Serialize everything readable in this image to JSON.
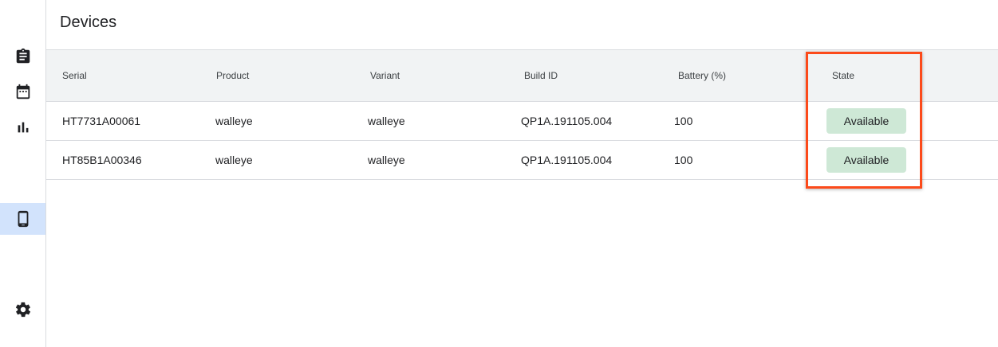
{
  "page": {
    "title": "Devices"
  },
  "sidebar": {
    "items": [
      {
        "icon": "clipboard-icon",
        "selected": false
      },
      {
        "icon": "calendar-icon",
        "selected": false
      },
      {
        "icon": "bar-chart-icon",
        "selected": false
      },
      {
        "icon": "phone-icon",
        "selected": true
      },
      {
        "icon": "gear-icon",
        "selected": false
      }
    ]
  },
  "table": {
    "columns": [
      "Serial",
      "Product",
      "Variant",
      "Build ID",
      "Battery (%)",
      "State"
    ],
    "rows": [
      {
        "serial": "HT7731A00061",
        "product": "walleye",
        "variant": "walleye",
        "build_id": "QP1A.191105.004",
        "battery": "100",
        "state": "Available"
      },
      {
        "serial": "HT85B1A00346",
        "product": "walleye",
        "variant": "walleye",
        "build_id": "QP1A.191105.004",
        "battery": "100",
        "state": "Available"
      }
    ]
  },
  "colors": {
    "state_available_bg": "#cee8d6",
    "selected_nav_bg": "#d2e3fc",
    "highlight": "#fc4a1a"
  }
}
